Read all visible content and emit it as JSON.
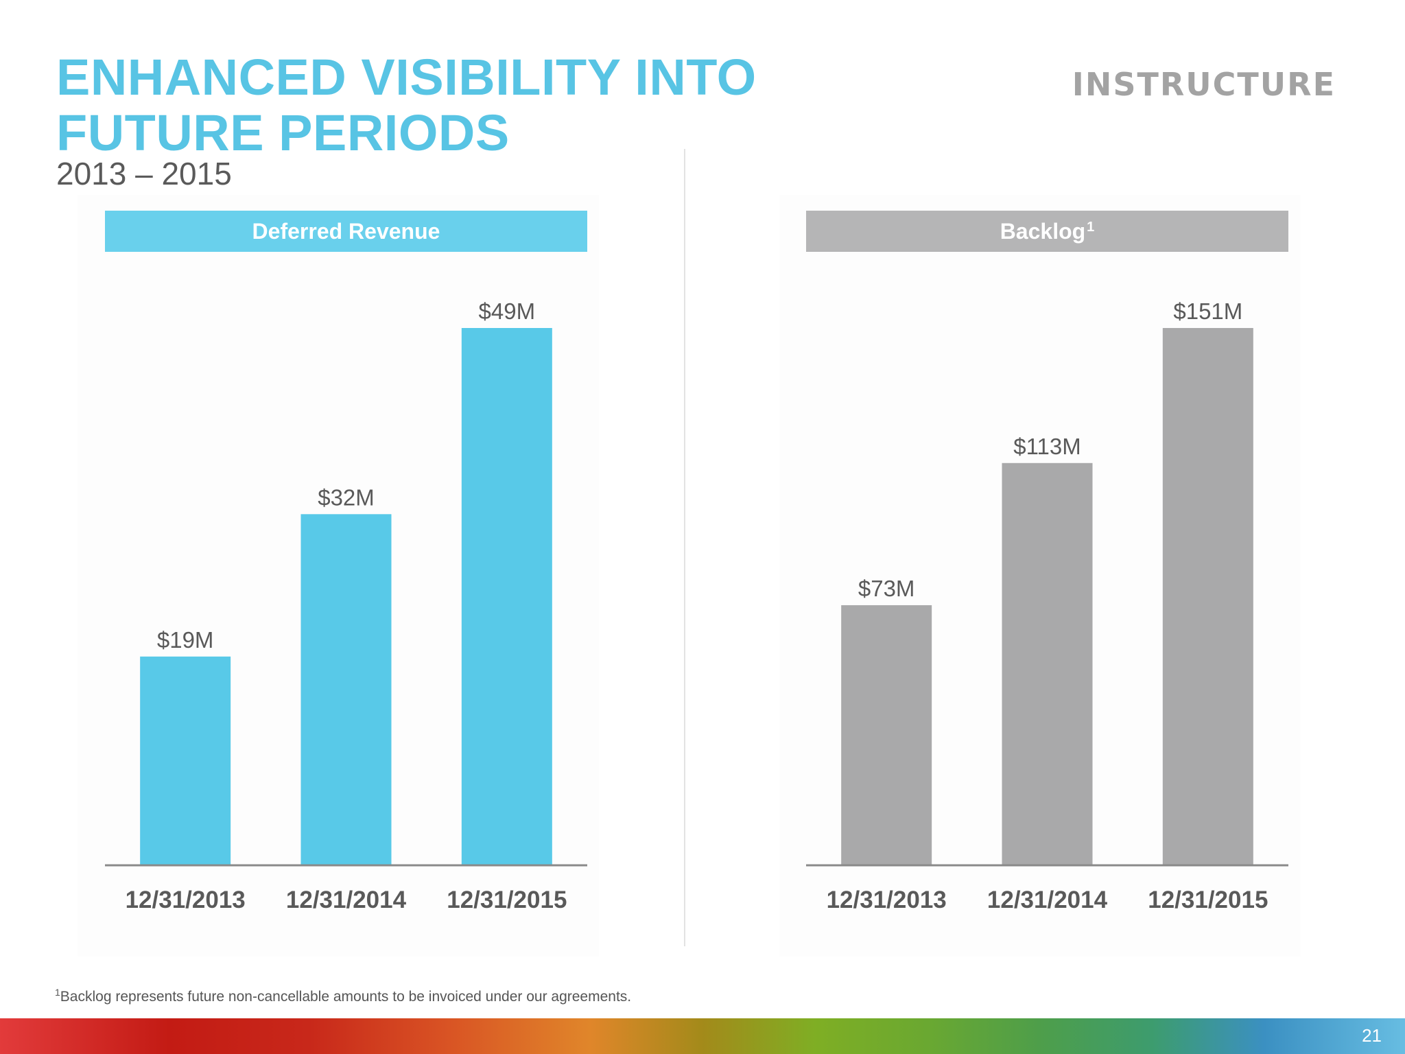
{
  "header": {
    "title_line1": "ENHANCED VISIBILITY INTO",
    "title_line2": "FUTURE PERIODS",
    "subtitle": "2013 – 2015",
    "logo_text": "INSTRUCTURE"
  },
  "chart_data": [
    {
      "type": "bar",
      "title": "Deferred Revenue",
      "title_superscript": "",
      "categories": [
        "12/31/2013",
        "12/31/2014",
        "12/31/2015"
      ],
      "values": [
        19,
        32,
        49
      ],
      "value_labels": [
        "$19M",
        "$32M",
        "$49M"
      ],
      "units": "$M",
      "color": "#58c9e8",
      "header_color": "#69d0ec",
      "ylim": [
        0,
        49
      ]
    },
    {
      "type": "bar",
      "title": "Backlog",
      "title_superscript": "1",
      "categories": [
        "12/31/2013",
        "12/31/2014",
        "12/31/2015"
      ],
      "values": [
        73,
        113,
        151
      ],
      "value_labels": [
        "$73M",
        "$113M",
        "$151M"
      ],
      "units": "$M",
      "color": "#a9a9aa",
      "header_color": "#b5b5b6",
      "ylim": [
        0,
        151
      ]
    }
  ],
  "footnote": {
    "marker": "1",
    "text": "Backlog represents future non-cancellable amounts to be invoiced under our agreements."
  },
  "page_number": "21"
}
